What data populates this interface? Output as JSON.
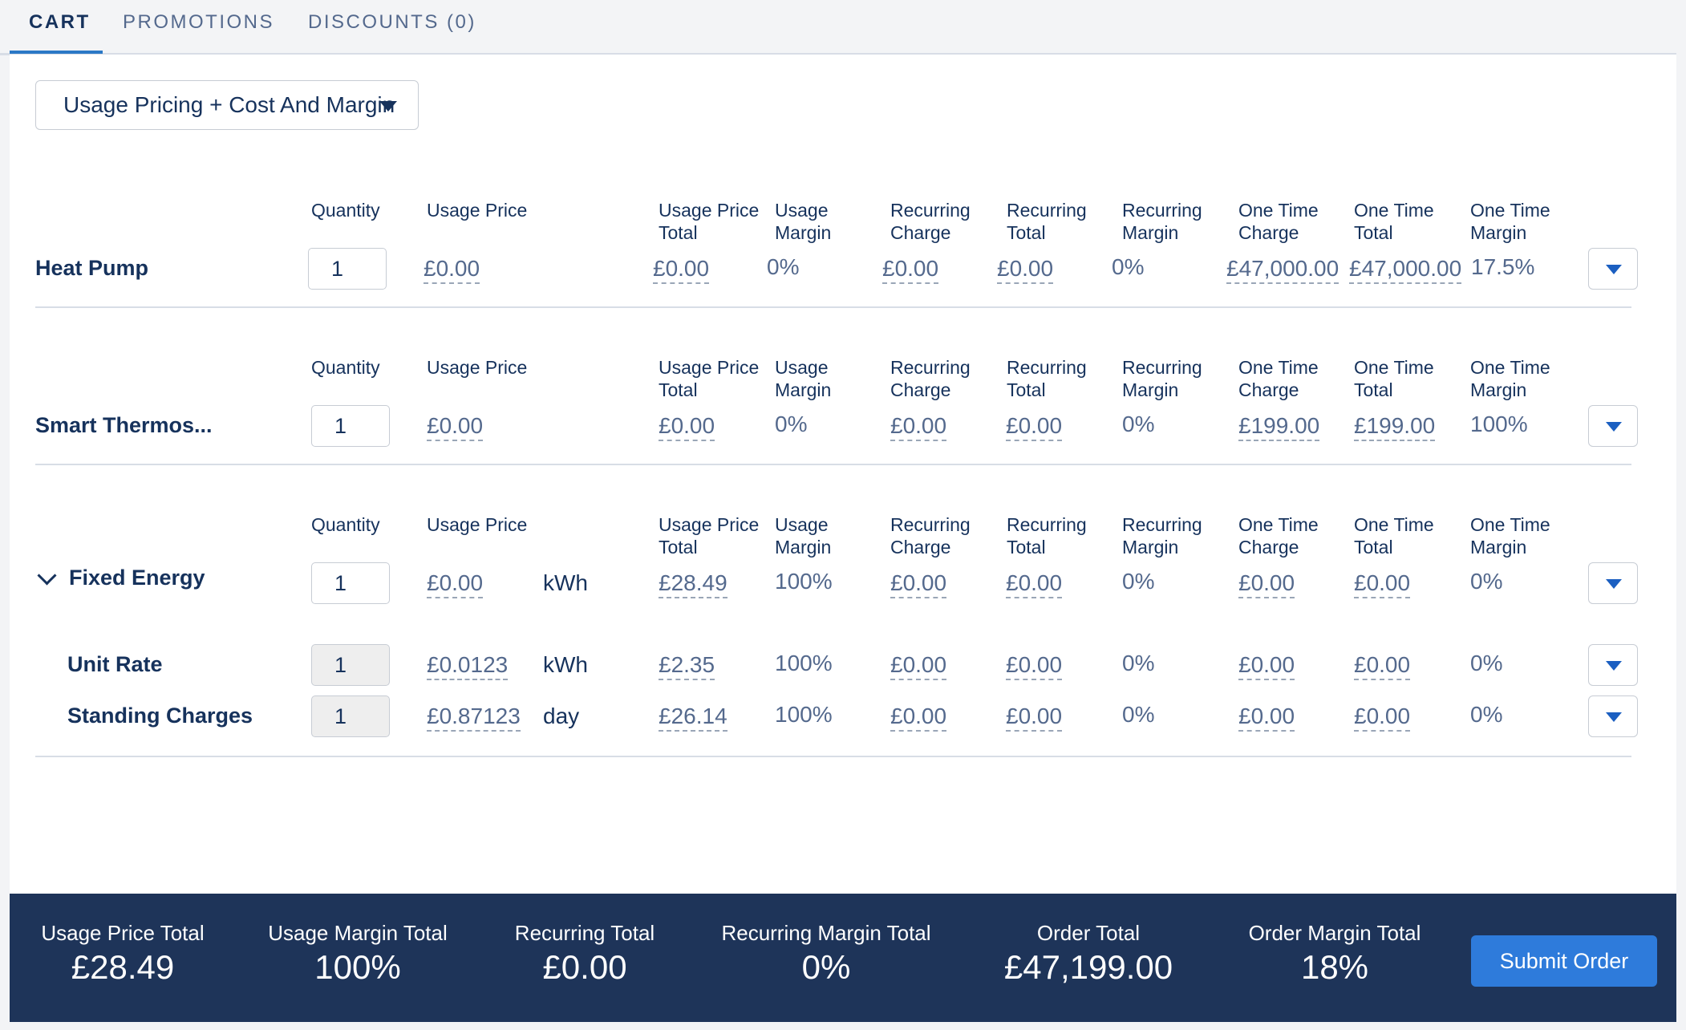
{
  "tabs": [
    {
      "label": "CART",
      "active": true
    },
    {
      "label": "PROMOTIONS",
      "active": false
    },
    {
      "label": "DISCOUNTS (0)",
      "active": false
    }
  ],
  "view_select": {
    "value": "Usage Pricing + Cost And Margin"
  },
  "headers": {
    "quantity": "Quantity",
    "usage_price": "Usage Price",
    "usage_price_total_1": "Usage Price",
    "usage_price_total_2": "Total",
    "usage_margin_1": "Usage",
    "usage_margin_2": "Margin",
    "recurring_charge_1": "Recurring",
    "recurring_charge_2": "Charge",
    "recurring_total_1": "Recurring",
    "recurring_total_2": "Total",
    "recurring_margin_1": "Recurring",
    "recurring_margin_2": "Margin",
    "one_time_charge_1": "One Time",
    "one_time_charge_2": "Charge",
    "one_time_total_1": "One Time",
    "one_time_total_2": "Total",
    "one_time_margin_1": "One Time",
    "one_time_margin_2": "Margin"
  },
  "items": [
    {
      "name": "Heat Pump",
      "quantity": "1",
      "usage_price": "£0.00",
      "unit": "",
      "usage_price_total": "£0.00",
      "usage_margin": "0%",
      "recurring_charge": "£0.00",
      "recurring_total": "£0.00",
      "recurring_margin": "0%",
      "one_time_charge": "£47,000.00",
      "one_time_total": "£47,000.00",
      "one_time_margin": "17.5%"
    },
    {
      "name": "Smart Thermos...",
      "quantity": "1",
      "usage_price": "£0.00",
      "unit": "",
      "usage_price_total": "£0.00",
      "usage_margin": "0%",
      "recurring_charge": "£0.00",
      "recurring_total": "£0.00",
      "recurring_margin": "0%",
      "one_time_charge": "£199.00",
      "one_time_total": "£199.00",
      "one_time_margin": "100%"
    },
    {
      "name": "Fixed Energy",
      "quantity": "1",
      "usage_price": "£0.00",
      "unit": "kWh",
      "usage_price_total": "£28.49",
      "usage_margin": "100%",
      "recurring_charge": "£0.00",
      "recurring_total": "£0.00",
      "recurring_margin": "0%",
      "one_time_charge": "£0.00",
      "one_time_total": "£0.00",
      "one_time_margin": "0%"
    },
    {
      "name": "Unit Rate",
      "quantity": "1",
      "usage_price": "£0.0123",
      "unit": "kWh",
      "usage_price_total": "£2.35",
      "usage_margin": "100%",
      "recurring_charge": "£0.00",
      "recurring_total": "£0.00",
      "recurring_margin": "0%",
      "one_time_charge": "£0.00",
      "one_time_total": "£0.00",
      "one_time_margin": "0%"
    },
    {
      "name": "Standing Charges",
      "quantity": "1",
      "usage_price": "£0.87123",
      "unit": "day",
      "usage_price_total": "£26.14",
      "usage_margin": "100%",
      "recurring_charge": "£0.00",
      "recurring_total": "£0.00",
      "recurring_margin": "0%",
      "one_time_charge": "£0.00",
      "one_time_total": "£0.00",
      "one_time_margin": "0%"
    }
  ],
  "footer": {
    "usage_price_total_label": "Usage Price Total",
    "usage_price_total": "£28.49",
    "usage_margin_total_label": "Usage Margin Total",
    "usage_margin_total": "100%",
    "recurring_total_label": "Recurring Total",
    "recurring_total": "£0.00",
    "recurring_margin_total_label": "Recurring Margin Total",
    "recurring_margin_total": "0%",
    "order_total_label": "Order Total",
    "order_total": "£47,199.00",
    "order_margin_total_label": "Order Margin Total",
    "order_margin_total": "18%",
    "submit_label": "Submit Order"
  },
  "colors": {
    "accent": "#2e7bdb",
    "footer_bg": "#1e3459",
    "text": "#16325c"
  }
}
